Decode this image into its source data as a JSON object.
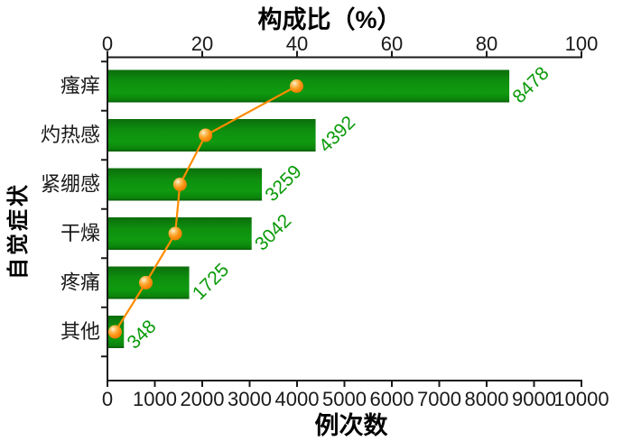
{
  "chart_data": {
    "type": "bar",
    "subtype": "horizontal-bars-with-percentage-line",
    "title_top_axis": "构成比（%）",
    "xlabel_bottom": "例次数",
    "ylabel": "自觉症状",
    "categories": [
      "瘙痒",
      "灼热感",
      "紧绷感",
      "干燥",
      "疼痛",
      "其他"
    ],
    "series": [
      {
        "name": "例次数",
        "type": "bar",
        "axis": "bottom",
        "values": [
          8478,
          4392,
          3259,
          3042,
          1725,
          348
        ]
      },
      {
        "name": "构成比",
        "type": "line",
        "axis": "top",
        "values": [
          39.9,
          20.7,
          15.3,
          14.3,
          8.1,
          1.6
        ]
      }
    ],
    "bar_labels": [
      "8478",
      "4392",
      "3259",
      "3042",
      "1725",
      "348"
    ],
    "axis_top": {
      "min": 0,
      "max": 100,
      "ticks": [
        0,
        20,
        40,
        60,
        80,
        100
      ]
    },
    "axis_bottom": {
      "min": 0,
      "max": 10000,
      "ticks": [
        0,
        1000,
        2000,
        3000,
        4000,
        5000,
        6000,
        7000,
        8000,
        9000,
        10000
      ]
    },
    "grid": false,
    "legend_position": "none",
    "colors": {
      "bar_top": "#0b6e0b",
      "bar_mid": "#109a10",
      "bar_bottom": "#065b06",
      "bar_label": "#0a9a08",
      "line": "#ff8c00",
      "marker_highlight": "#fff3e0",
      "marker_core": "#ff9717",
      "marker_edge": "#e87300",
      "axis": "#1a1a1a",
      "background": "#ffffff"
    }
  }
}
